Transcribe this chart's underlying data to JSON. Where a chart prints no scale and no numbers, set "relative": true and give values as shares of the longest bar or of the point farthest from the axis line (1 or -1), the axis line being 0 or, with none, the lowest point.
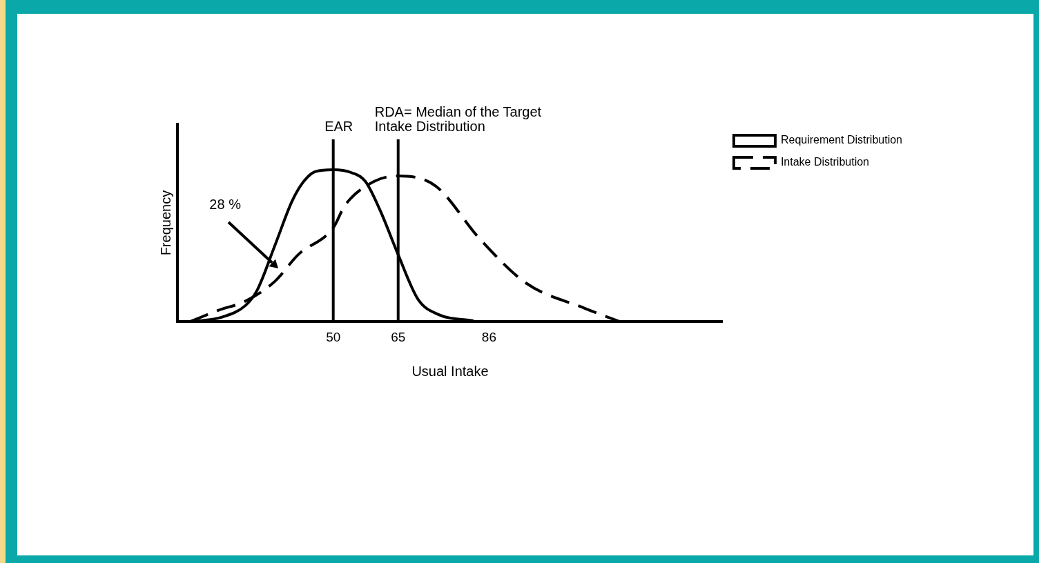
{
  "chart_data": {
    "type": "line",
    "relative": true,
    "xlabel": "Usual Intake",
    "ylabel": "Frequency",
    "xlim": [
      14,
      140
    ],
    "xticks": [
      50,
      65,
      86
    ],
    "legend": "right",
    "grid": false,
    "marker": "none",
    "series": [
      {
        "name": "Requirement Distribution",
        "color": "#000000",
        "line_style": "solid",
        "x": [
          17.6,
          24.3,
          29.7,
          32.4,
          36.5,
          40.5,
          43.2,
          45.9,
          50,
          54.1,
          57.4,
          60.8,
          65,
          69.6,
          74.3,
          82.4
        ],
        "values": [
          0,
          0.03,
          0.106,
          0.206,
          0.5,
          0.794,
          0.924,
          0.988,
          1,
          0.982,
          0.924,
          0.735,
          0.441,
          0.147,
          0.047,
          0.006
        ]
      },
      {
        "name": "Intake Distribution",
        "color": "#000000",
        "line_style": "dashed",
        "x": [
          16.9,
          23.6,
          29.7,
          36.5,
          41.9,
          50,
          52.7,
          59.5,
          65,
          73.6,
          83.8,
          94.6,
          108.1,
          116.2
        ],
        "values": [
          0,
          0.076,
          0.135,
          0.265,
          0.441,
          0.618,
          0.765,
          0.924,
          0.959,
          0.894,
          0.547,
          0.253,
          0.088,
          0
        ]
      }
    ],
    "ref_lines": [
      {
        "axis": "x",
        "value": 50,
        "label": "EAR"
      },
      {
        "axis": "x",
        "value": 65,
        "label": "RDA= Median of the Target\nIntake Distribution"
      }
    ],
    "annotations": [
      "28 %"
    ]
  }
}
